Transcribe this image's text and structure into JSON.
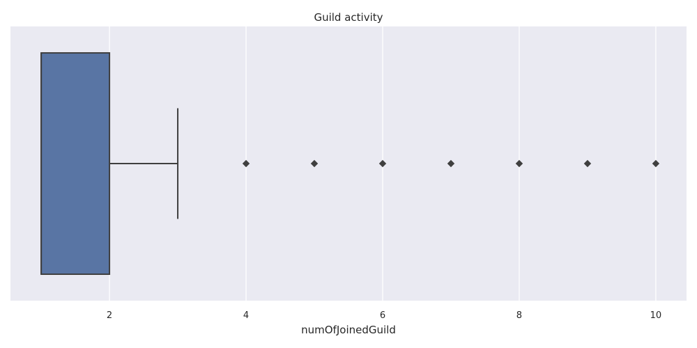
{
  "chart_data": {
    "type": "boxplot",
    "title": "Guild activity",
    "xlabel": "numOfJoinedGuild",
    "ylabel": "",
    "xlim": [
      0.55,
      10.45
    ],
    "xticks": [
      2,
      4,
      6,
      8,
      10
    ],
    "grid": true,
    "orientation": "horizontal",
    "box": {
      "whisker_low": 1,
      "q1": 1,
      "median": 1,
      "q3": 2,
      "whisker_high": 3
    },
    "outliers": [
      4,
      5,
      6,
      7,
      8,
      9,
      10
    ],
    "colors": {
      "box_fill": "#5975a4",
      "line": "#3f3f3f",
      "plot_background": "#eaeaf2",
      "grid": "#ffffff",
      "outlier": "#3f3f3f"
    }
  }
}
